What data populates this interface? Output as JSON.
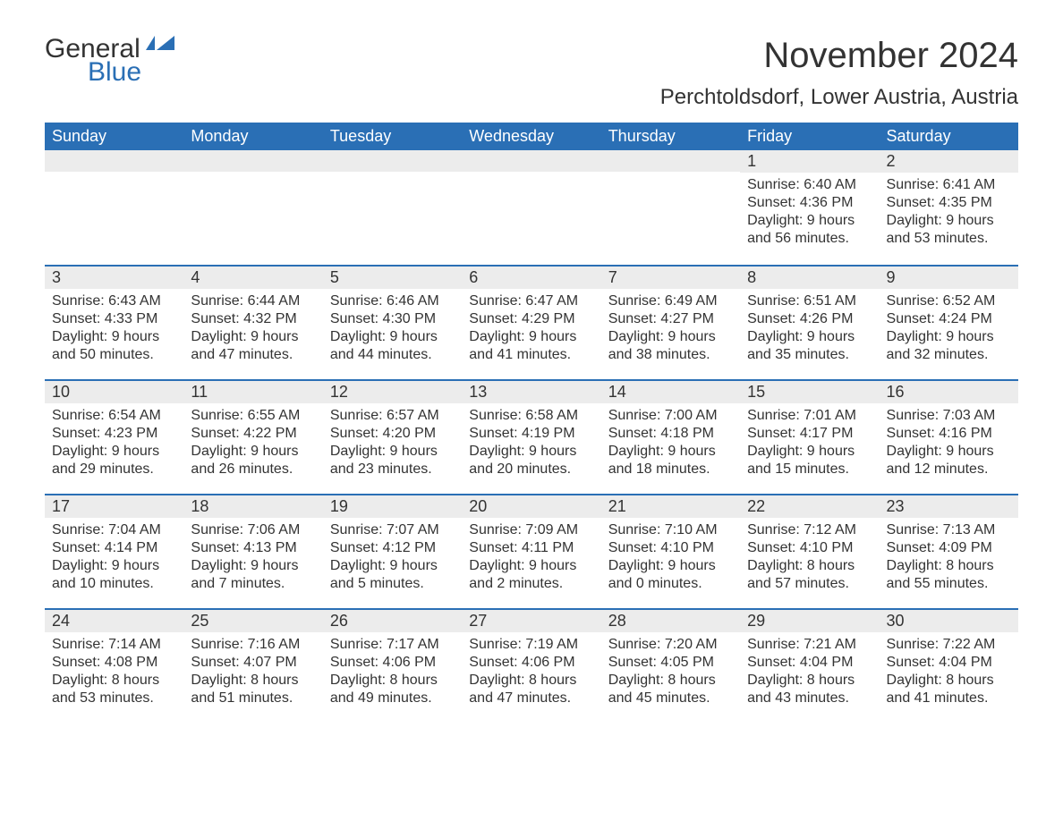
{
  "logo": {
    "text1": "General",
    "text2": "Blue",
    "color1": "#333333",
    "color2": "#2a6fb5"
  },
  "title": "November 2024",
  "location": "Perchtoldsdorf, Lower Austria, Austria",
  "colors": {
    "header_bg": "#2a6fb5",
    "header_text": "#ffffff",
    "daynum_bg": "#ececec",
    "body_text": "#333333",
    "row_border": "#2a6fb5",
    "page_bg": "#ffffff"
  },
  "fonts": {
    "title_size_pt": 30,
    "location_size_pt": 18,
    "header_size_pt": 14,
    "body_size_pt": 12
  },
  "day_headers": [
    "Sunday",
    "Monday",
    "Tuesday",
    "Wednesday",
    "Thursday",
    "Friday",
    "Saturday"
  ],
  "labels": {
    "sunrise": "Sunrise:",
    "sunset": "Sunset:",
    "daylight": "Daylight:"
  },
  "weeks": [
    [
      null,
      null,
      null,
      null,
      null,
      {
        "n": "1",
        "sunrise": "6:40 AM",
        "sunset": "4:36 PM",
        "daylight": "9 hours and 56 minutes."
      },
      {
        "n": "2",
        "sunrise": "6:41 AM",
        "sunset": "4:35 PM",
        "daylight": "9 hours and 53 minutes."
      }
    ],
    [
      {
        "n": "3",
        "sunrise": "6:43 AM",
        "sunset": "4:33 PM",
        "daylight": "9 hours and 50 minutes."
      },
      {
        "n": "4",
        "sunrise": "6:44 AM",
        "sunset": "4:32 PM",
        "daylight": "9 hours and 47 minutes."
      },
      {
        "n": "5",
        "sunrise": "6:46 AM",
        "sunset": "4:30 PM",
        "daylight": "9 hours and 44 minutes."
      },
      {
        "n": "6",
        "sunrise": "6:47 AM",
        "sunset": "4:29 PM",
        "daylight": "9 hours and 41 minutes."
      },
      {
        "n": "7",
        "sunrise": "6:49 AM",
        "sunset": "4:27 PM",
        "daylight": "9 hours and 38 minutes."
      },
      {
        "n": "8",
        "sunrise": "6:51 AM",
        "sunset": "4:26 PM",
        "daylight": "9 hours and 35 minutes."
      },
      {
        "n": "9",
        "sunrise": "6:52 AM",
        "sunset": "4:24 PM",
        "daylight": "9 hours and 32 minutes."
      }
    ],
    [
      {
        "n": "10",
        "sunrise": "6:54 AM",
        "sunset": "4:23 PM",
        "daylight": "9 hours and 29 minutes."
      },
      {
        "n": "11",
        "sunrise": "6:55 AM",
        "sunset": "4:22 PM",
        "daylight": "9 hours and 26 minutes."
      },
      {
        "n": "12",
        "sunrise": "6:57 AM",
        "sunset": "4:20 PM",
        "daylight": "9 hours and 23 minutes."
      },
      {
        "n": "13",
        "sunrise": "6:58 AM",
        "sunset": "4:19 PM",
        "daylight": "9 hours and 20 minutes."
      },
      {
        "n": "14",
        "sunrise": "7:00 AM",
        "sunset": "4:18 PM",
        "daylight": "9 hours and 18 minutes."
      },
      {
        "n": "15",
        "sunrise": "7:01 AM",
        "sunset": "4:17 PM",
        "daylight": "9 hours and 15 minutes."
      },
      {
        "n": "16",
        "sunrise": "7:03 AM",
        "sunset": "4:16 PM",
        "daylight": "9 hours and 12 minutes."
      }
    ],
    [
      {
        "n": "17",
        "sunrise": "7:04 AM",
        "sunset": "4:14 PM",
        "daylight": "9 hours and 10 minutes."
      },
      {
        "n": "18",
        "sunrise": "7:06 AM",
        "sunset": "4:13 PM",
        "daylight": "9 hours and 7 minutes."
      },
      {
        "n": "19",
        "sunrise": "7:07 AM",
        "sunset": "4:12 PM",
        "daylight": "9 hours and 5 minutes."
      },
      {
        "n": "20",
        "sunrise": "7:09 AM",
        "sunset": "4:11 PM",
        "daylight": "9 hours and 2 minutes."
      },
      {
        "n": "21",
        "sunrise": "7:10 AM",
        "sunset": "4:10 PM",
        "daylight": "9 hours and 0 minutes."
      },
      {
        "n": "22",
        "sunrise": "7:12 AM",
        "sunset": "4:10 PM",
        "daylight": "8 hours and 57 minutes."
      },
      {
        "n": "23",
        "sunrise": "7:13 AM",
        "sunset": "4:09 PM",
        "daylight": "8 hours and 55 minutes."
      }
    ],
    [
      {
        "n": "24",
        "sunrise": "7:14 AM",
        "sunset": "4:08 PM",
        "daylight": "8 hours and 53 minutes."
      },
      {
        "n": "25",
        "sunrise": "7:16 AM",
        "sunset": "4:07 PM",
        "daylight": "8 hours and 51 minutes."
      },
      {
        "n": "26",
        "sunrise": "7:17 AM",
        "sunset": "4:06 PM",
        "daylight": "8 hours and 49 minutes."
      },
      {
        "n": "27",
        "sunrise": "7:19 AM",
        "sunset": "4:06 PM",
        "daylight": "8 hours and 47 minutes."
      },
      {
        "n": "28",
        "sunrise": "7:20 AM",
        "sunset": "4:05 PM",
        "daylight": "8 hours and 45 minutes."
      },
      {
        "n": "29",
        "sunrise": "7:21 AM",
        "sunset": "4:04 PM",
        "daylight": "8 hours and 43 minutes."
      },
      {
        "n": "30",
        "sunrise": "7:22 AM",
        "sunset": "4:04 PM",
        "daylight": "8 hours and 41 minutes."
      }
    ]
  ]
}
